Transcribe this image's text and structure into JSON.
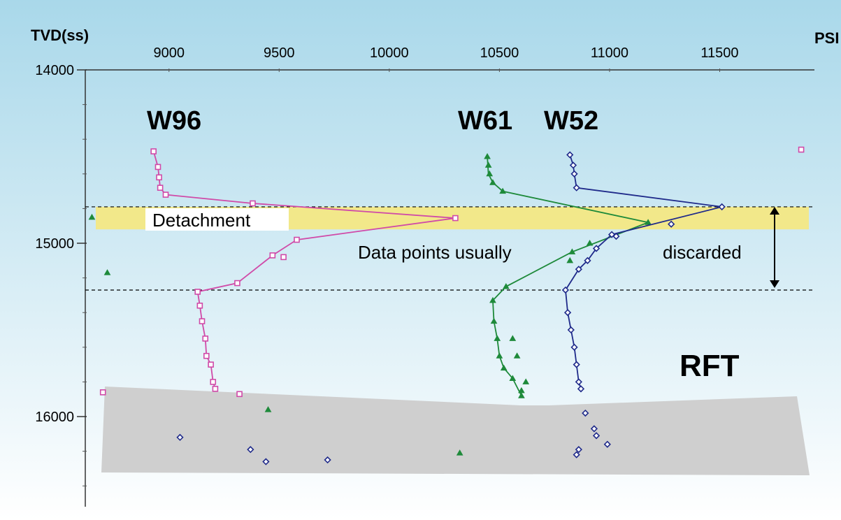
{
  "chart_data": {
    "type": "scatter",
    "y_axis_title": "TVD(ss)",
    "x_axis_title": "PSI",
    "xlim": [
      8620,
      11930
    ],
    "ylim": [
      16520,
      14000
    ],
    "x_ticks": [
      9000,
      9500,
      10000,
      10500,
      11000,
      11500
    ],
    "y_ticks": [
      14000,
      15000,
      16000
    ],
    "grid": false,
    "series": [
      {
        "name": "W96",
        "color": "#d04aa8",
        "marker": "square",
        "line": [
          [
            8930,
            14470
          ],
          [
            8950,
            14560
          ],
          [
            8955,
            14620
          ],
          [
            8960,
            14680
          ],
          [
            8985,
            14720
          ],
          [
            9380,
            14770
          ],
          [
            10300,
            14855
          ],
          [
            9580,
            14980
          ],
          [
            9470,
            15070
          ],
          [
            9310,
            15230
          ],
          [
            9130,
            15280
          ],
          [
            9140,
            15360
          ],
          [
            9150,
            15450
          ],
          [
            9165,
            15550
          ],
          [
            9170,
            15650
          ],
          [
            9190,
            15700
          ],
          [
            9200,
            15800
          ],
          [
            9210,
            15840
          ]
        ],
        "points": [
          [
            8930,
            14470
          ],
          [
            8950,
            14560
          ],
          [
            8955,
            14620
          ],
          [
            8960,
            14680
          ],
          [
            8985,
            14720
          ],
          [
            9380,
            14770
          ],
          [
            10300,
            14855
          ],
          [
            9580,
            14980
          ],
          [
            9470,
            15070
          ],
          [
            9520,
            15080
          ],
          [
            9310,
            15230
          ],
          [
            9130,
            15280
          ],
          [
            9140,
            15360
          ],
          [
            9150,
            15450
          ],
          [
            9165,
            15550
          ],
          [
            9170,
            15650
          ],
          [
            9190,
            15700
          ],
          [
            9200,
            15800
          ],
          [
            9210,
            15840
          ],
          [
            11870,
            14460
          ],
          [
            9320,
            15870
          ],
          [
            8700,
            15860
          ]
        ]
      },
      {
        "name": "W61",
        "color": "#1e8a3a",
        "marker": "triangle",
        "line": [
          [
            10445,
            14500
          ],
          [
            10450,
            14600
          ],
          [
            10470,
            14650
          ],
          [
            10515,
            14700
          ],
          [
            11175,
            14880
          ],
          [
            10830,
            15050
          ],
          [
            10530,
            15250
          ],
          [
            10470,
            15330
          ],
          [
            10475,
            15450
          ],
          [
            10490,
            15550
          ],
          [
            10500,
            15650
          ],
          [
            10520,
            15720
          ],
          [
            10560,
            15780
          ],
          [
            10600,
            15880
          ]
        ],
        "points": [
          [
            10445,
            14500
          ],
          [
            10450,
            14550
          ],
          [
            10455,
            14600
          ],
          [
            10470,
            14650
          ],
          [
            10515,
            14700
          ],
          [
            11175,
            14880
          ],
          [
            10910,
            15000
          ],
          [
            10830,
            15050
          ],
          [
            10820,
            15100
          ],
          [
            10530,
            15250
          ],
          [
            10470,
            15330
          ],
          [
            10475,
            15450
          ],
          [
            10490,
            15550
          ],
          [
            10500,
            15650
          ],
          [
            10520,
            15720
          ],
          [
            10560,
            15780
          ],
          [
            10600,
            15880
          ],
          [
            10560,
            15550
          ],
          [
            10580,
            15650
          ],
          [
            10620,
            15800
          ],
          [
            10600,
            15850
          ],
          [
            8650,
            14850
          ],
          [
            8720,
            15170
          ],
          [
            9450,
            15960
          ],
          [
            10320,
            16210
          ]
        ]
      },
      {
        "name": "W52",
        "color": "#1f2a8a",
        "marker": "diamond",
        "line": [
          [
            10820,
            14490
          ],
          [
            10835,
            14550
          ],
          [
            10840,
            14600
          ],
          [
            10850,
            14680
          ],
          [
            11510,
            14790
          ],
          [
            11010,
            14950
          ],
          [
            10940,
            15030
          ],
          [
            10900,
            15100
          ],
          [
            10860,
            15150
          ],
          [
            10800,
            15270
          ],
          [
            10810,
            15400
          ],
          [
            10825,
            15500
          ],
          [
            10840,
            15600
          ],
          [
            10850,
            15700
          ],
          [
            10860,
            15800
          ],
          [
            10870,
            15840
          ]
        ],
        "points": [
          [
            10820,
            14490
          ],
          [
            10835,
            14550
          ],
          [
            10840,
            14600
          ],
          [
            10850,
            14680
          ],
          [
            11510,
            14790
          ],
          [
            11280,
            14890
          ],
          [
            11030,
            14960
          ],
          [
            11010,
            14950
          ],
          [
            10940,
            15030
          ],
          [
            10900,
            15100
          ],
          [
            10860,
            15150
          ],
          [
            10800,
            15270
          ],
          [
            10810,
            15400
          ],
          [
            10825,
            15500
          ],
          [
            10840,
            15600
          ],
          [
            10850,
            15700
          ],
          [
            10860,
            15800
          ],
          [
            10870,
            15840
          ],
          [
            10890,
            15980
          ],
          [
            10930,
            16070
          ],
          [
            10940,
            16110
          ],
          [
            10990,
            16160
          ],
          [
            10860,
            16190
          ],
          [
            10850,
            16220
          ],
          [
            9050,
            16120
          ],
          [
            9370,
            16190
          ],
          [
            9440,
            16260
          ],
          [
            9720,
            16250
          ]
        ]
      }
    ],
    "annotations": {
      "w96_label": "W96",
      "w61_label": "W61",
      "w52_label": "W52",
      "detachment_label": "Detachment",
      "discard_label_left": "Data points usually",
      "discard_label_right": "discarded",
      "rft_label": "RFT"
    },
    "bands": {
      "detachment_y": [
        14790,
        14920
      ],
      "discard_lines_y": [
        14790,
        15270
      ],
      "colors": {
        "detachment": "#f2e88a",
        "excluded": "#cfcfcf"
      }
    }
  }
}
